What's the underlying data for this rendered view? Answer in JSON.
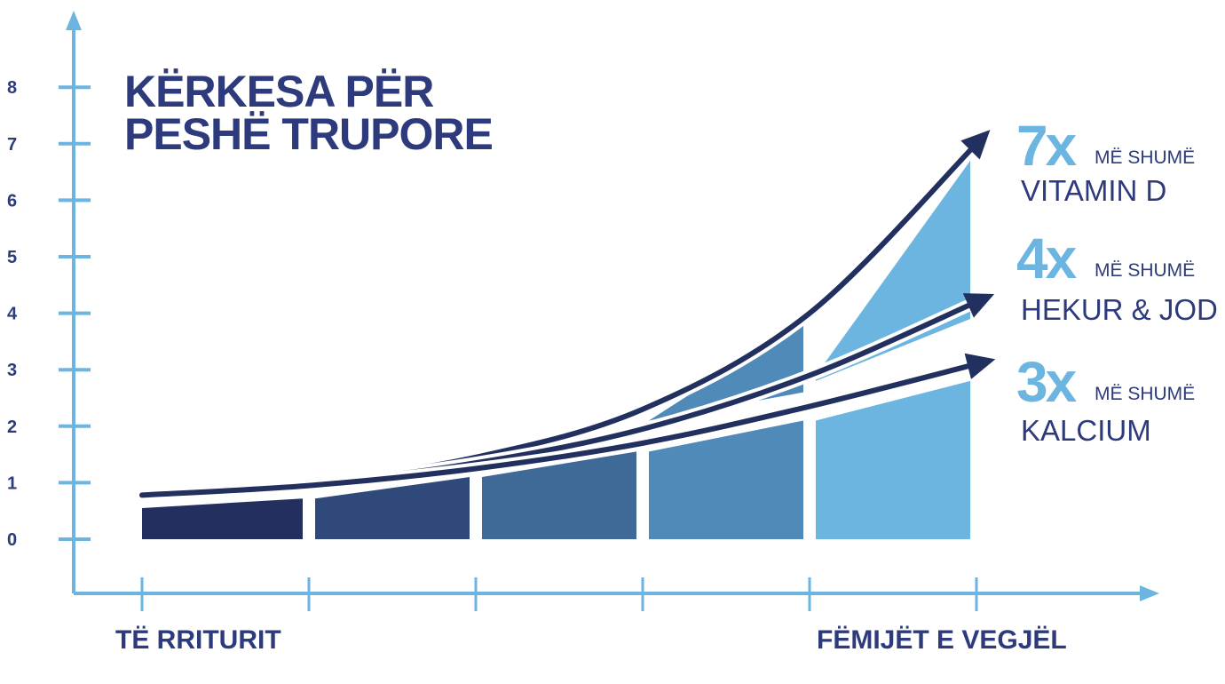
{
  "chart_data": {
    "type": "area",
    "title_lines": [
      "KËRKESA  PËR",
      "PESHË TRUPORE"
    ],
    "y_ticks": [
      "0",
      "1",
      "2",
      "3",
      "4",
      "5",
      "6",
      "7",
      "8"
    ],
    "ylim": [
      0,
      8
    ],
    "x_labels": {
      "start": "TË RRITURIT",
      "end": "FËMIJËT E VEGJËL"
    },
    "stages": [
      0,
      1,
      2,
      3,
      4,
      5
    ],
    "bars": [
      {
        "x0": 0,
        "x1": 1,
        "top_left": 0.55,
        "top_right": 0.72,
        "color": "#23305f"
      },
      {
        "x0": 1,
        "x1": 2,
        "top_left": 0.72,
        "top_right": 1.1,
        "color": "#2f4a7a"
      },
      {
        "x0": 2,
        "x1": 3,
        "top_left": 1.1,
        "top_right": 1.55,
        "color": "#3f6996"
      },
      {
        "x0": 3,
        "x1": 4,
        "top_left": 1.55,
        "top_right": 2.1,
        "color": "#4f8ab8"
      },
      {
        "x0": 4,
        "x1": 5,
        "top_left": 2.1,
        "top_right": 2.8,
        "color": "#6bb5e0"
      }
    ],
    "bands": [
      {
        "x0": 3,
        "x1": 4,
        "bottom": [
          2.1,
          2.6
        ],
        "top": [
          2.1,
          3.85
        ],
        "color": "#4f8ab8"
      },
      {
        "x0": 4,
        "x1": 5,
        "bottom": [
          2.8,
          3.9
        ],
        "top": [
          2.9,
          6.7
        ],
        "color": "#6bb5e0"
      }
    ],
    "series": [
      {
        "label_multiplier": "7x",
        "label_more": "MË SHUMË",
        "label_nutrient": "VITAMIN D",
        "points": [
          [
            0,
            0.78
          ],
          [
            1,
            1.0
          ],
          [
            2,
            1.45
          ],
          [
            3,
            2.3
          ],
          [
            4,
            4.0
          ],
          [
            5,
            7.0
          ]
        ]
      },
      {
        "label_multiplier": "4x",
        "label_more": "MË SHUMË",
        "label_nutrient": "HEKUR & JOD",
        "points": [
          [
            0,
            0.78
          ],
          [
            1,
            0.98
          ],
          [
            2,
            1.35
          ],
          [
            3,
            1.95
          ],
          [
            4,
            2.9
          ],
          [
            5,
            4.2
          ]
        ]
      },
      {
        "label_multiplier": "3x",
        "label_more": "MË SHUMË",
        "label_nutrient": "KALCIUM",
        "points": [
          [
            0,
            0.78
          ],
          [
            1,
            0.95
          ],
          [
            2,
            1.25
          ],
          [
            3,
            1.7
          ],
          [
            4,
            2.35
          ],
          [
            5,
            3.1
          ]
        ]
      }
    ],
    "colors": {
      "axis": "#6bb5e0",
      "text": "#2d3a7c",
      "arrow": "#22305f",
      "highlight": "#6bb5e0"
    }
  }
}
